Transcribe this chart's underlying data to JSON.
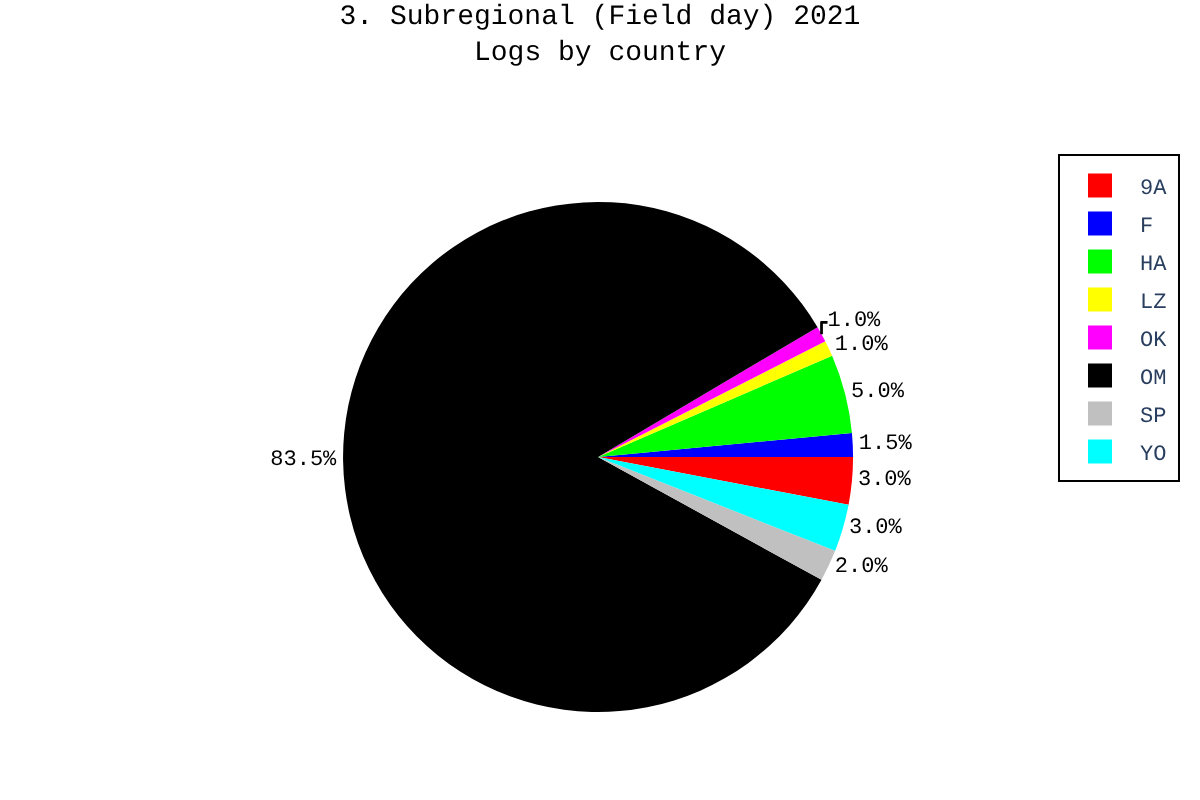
{
  "chart_data": {
    "type": "pie",
    "title": "3. Subregional (Field day) 2021",
    "subtitle": "Logs by country",
    "categories": [
      "9A",
      "F",
      "HA",
      "LZ",
      "OK",
      "OM",
      "SP",
      "YO"
    ],
    "values": [
      3.0,
      1.5,
      5.0,
      1.0,
      1.0,
      83.5,
      2.0,
      3.0
    ],
    "colors": [
      "#ff0000",
      "#0000ff",
      "#00ff00",
      "#ffff00",
      "#ff00ff",
      "#000000",
      "#c0c0c0",
      "#00ffff"
    ],
    "value_labels": [
      "3.0%",
      "1.5%",
      "5.0%",
      "1.0%",
      "1.0%",
      "83.5%",
      "2.0%",
      "3.0%"
    ],
    "legend": "top right"
  }
}
